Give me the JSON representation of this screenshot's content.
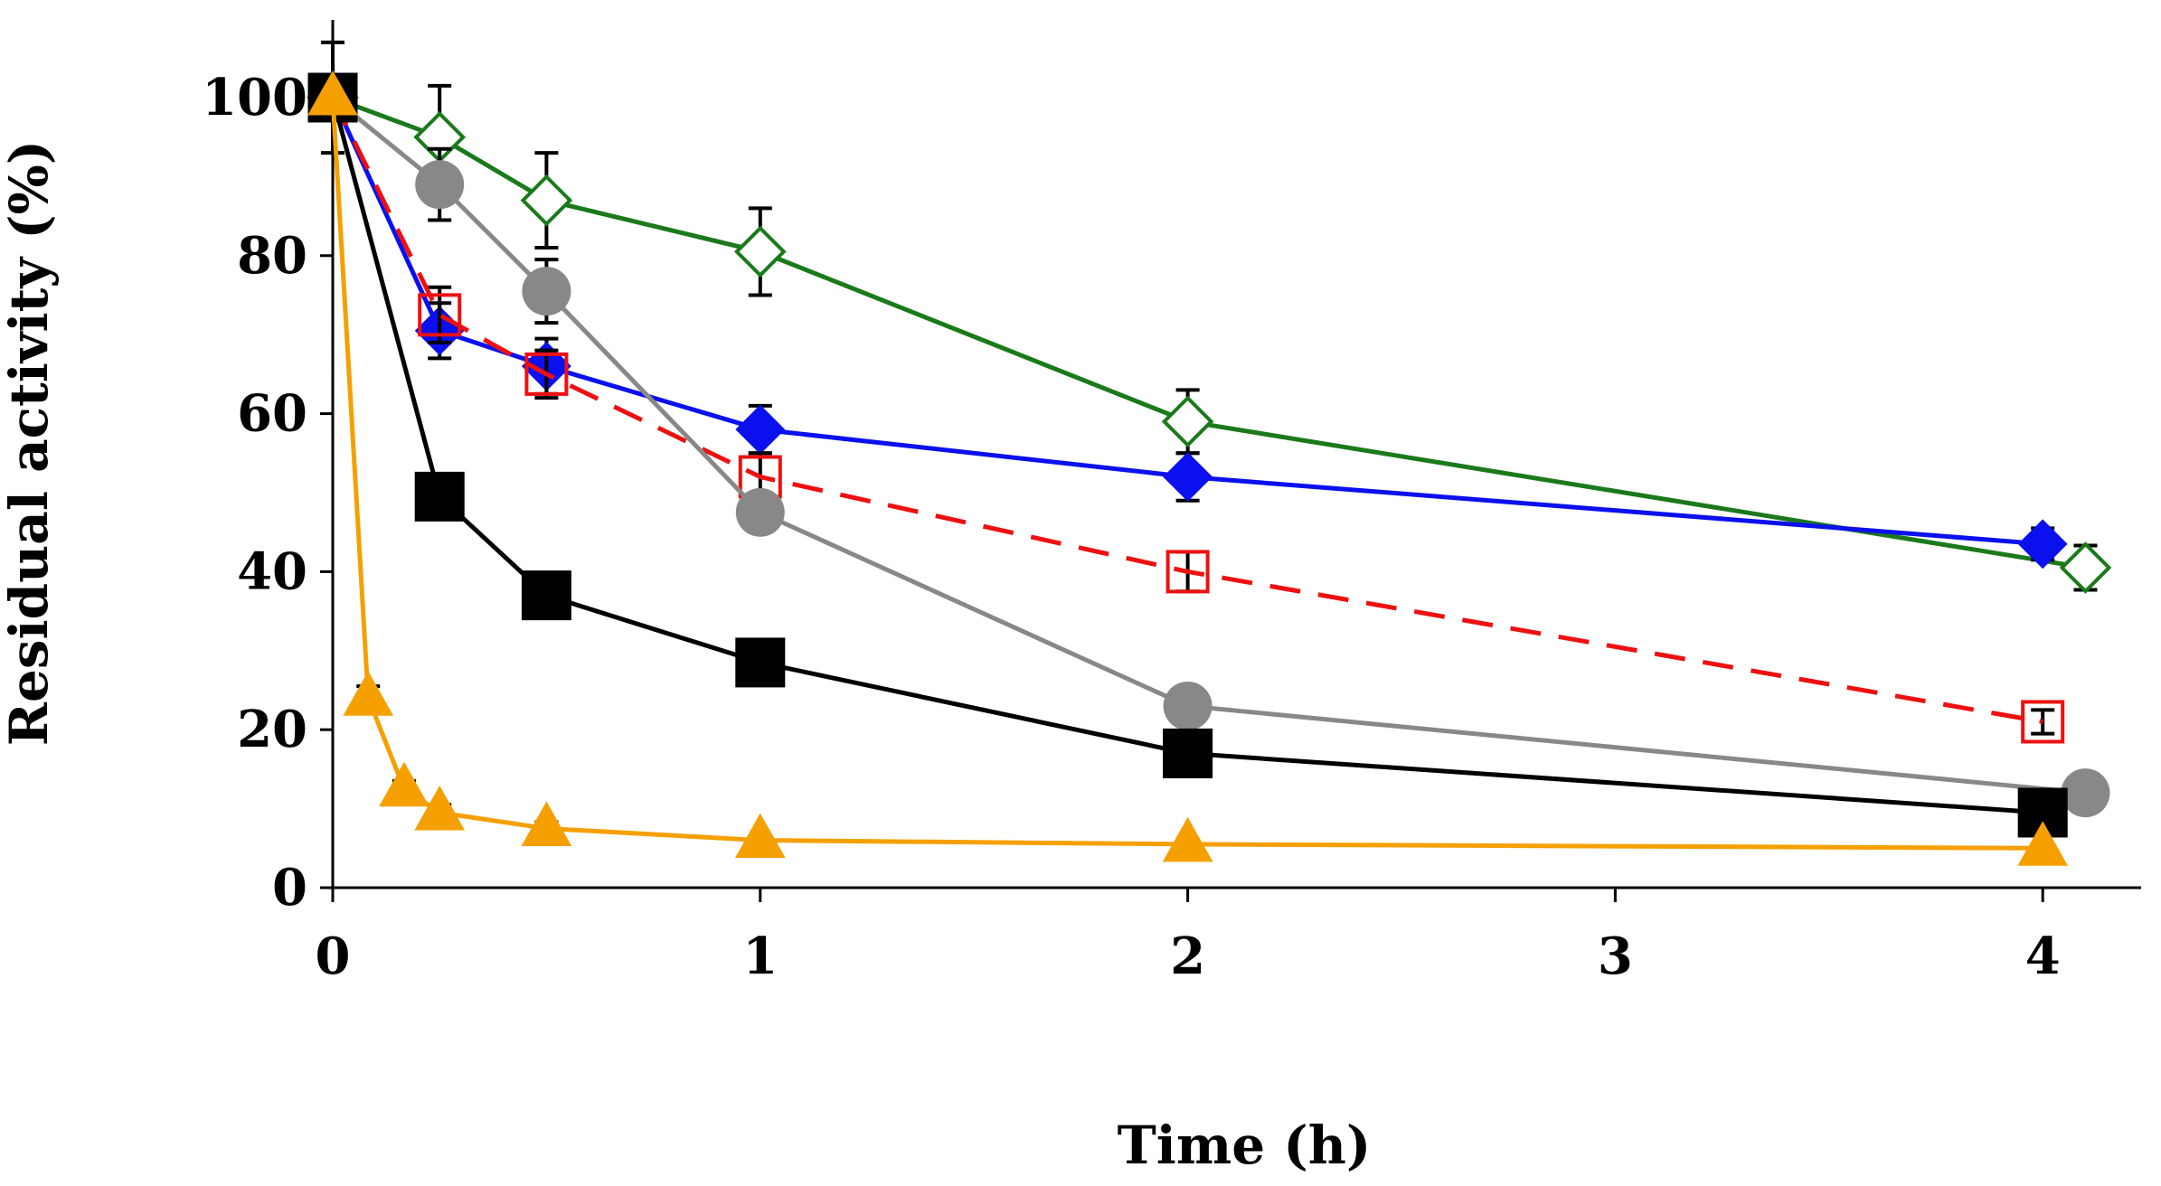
{
  "chart_data": {
    "type": "line",
    "title": "",
    "xlabel": "Time (h)",
    "ylabel": "Residual activity (%)",
    "xlim": [
      0,
      4.25
    ],
    "ylim": [
      0,
      110
    ],
    "x_ticks": [
      0,
      1,
      2,
      3,
      4
    ],
    "x_tick_labels": [
      "0",
      "1",
      "2",
      "3",
      "4"
    ],
    "y_ticks": [
      0,
      20,
      40,
      60,
      80,
      100
    ],
    "y_tick_labels": [
      "0",
      "20",
      "40",
      "60",
      "80",
      "100"
    ],
    "grid": false,
    "legend": "none",
    "series": [
      {
        "name": "green-open-diamond",
        "color": "#1a7a1a",
        "marker": "diamond-open",
        "dashed": false,
        "x": [
          0,
          0.25,
          0.5,
          1,
          2,
          4.1
        ],
        "y": [
          100,
          95,
          87,
          80.5,
          59,
          40.5
        ],
        "err": [
          0,
          6.5,
          6,
          5.5,
          4,
          2.8
        ]
      },
      {
        "name": "blue-diamond",
        "color": "#0a10ee",
        "marker": "diamond-filled",
        "dashed": false,
        "x": [
          0,
          0.25,
          0.5,
          1,
          2,
          4
        ],
        "y": [
          100,
          70.5,
          66,
          58,
          52,
          43.5
        ],
        "err": [
          0,
          3.5,
          3.5,
          3,
          3,
          2
        ]
      },
      {
        "name": "red-open-square",
        "color": "#ee1010",
        "marker": "square-open",
        "dashed": true,
        "x": [
          0,
          0.25,
          0.5,
          1,
          2,
          4
        ],
        "y": [
          100,
          72.5,
          65,
          52,
          40,
          21
        ],
        "err": [
          0,
          3.5,
          3,
          3,
          2.5,
          1.5
        ]
      },
      {
        "name": "gray-circle",
        "color": "#888888",
        "marker": "circle-filled",
        "dashed": false,
        "x": [
          0,
          0.25,
          0.5,
          1,
          2,
          4.1
        ],
        "y": [
          100,
          89,
          75.5,
          47.5,
          23,
          12
        ],
        "err": [
          0,
          4.5,
          4,
          2,
          1,
          1
        ]
      },
      {
        "name": "black-square",
        "color": "#000000",
        "marker": "square-filled",
        "dashed": false,
        "x": [
          0,
          0.25,
          0.5,
          1,
          2,
          4
        ],
        "y": [
          100,
          49.5,
          37,
          28.5,
          17,
          9.5
        ],
        "err": [
          7,
          1.5,
          1.5,
          1,
          1,
          0.8
        ]
      },
      {
        "name": "orange-triangle",
        "color": "#f5a000",
        "marker": "triangle-filled",
        "dashed": false,
        "x": [
          0,
          0.083,
          0.167,
          0.25,
          0.5,
          1,
          2,
          4
        ],
        "y": [
          100,
          24,
          12.5,
          9.5,
          7.5,
          6,
          5.5,
          5
        ],
        "err": [
          0,
          1.5,
          1,
          1,
          0.8,
          0.5,
          0.5,
          0.5
        ]
      }
    ]
  }
}
